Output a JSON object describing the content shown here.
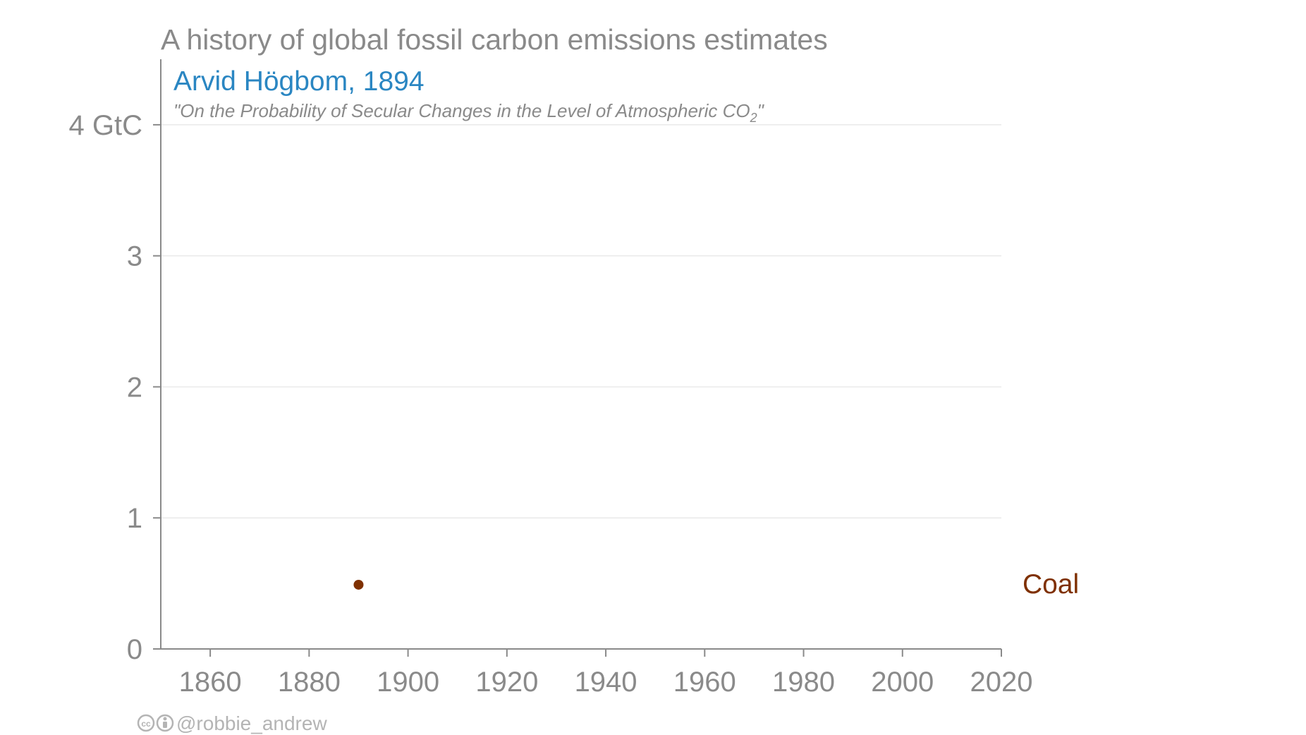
{
  "chart_data": {
    "type": "scatter",
    "title": "A history of global fossil carbon emissions estimates",
    "author_label": "Arvid Högbom, 1894",
    "paper_title_prefix": "\"On the Probability of Secular Changes in the Level of Atmospheric CO",
    "paper_title_subscript": "2",
    "paper_title_suffix": "\"",
    "y_unit": "GtC",
    "xlim": [
      1850,
      2020
    ],
    "ylim": [
      0,
      4.5
    ],
    "x_ticks": [
      1860,
      1880,
      1900,
      1920,
      1940,
      1960,
      1980,
      2000,
      2020
    ],
    "y_ticks": [
      0,
      1,
      2,
      3,
      4
    ],
    "y_tick_labels": [
      "0",
      "1",
      "2",
      "3",
      "4 GtC"
    ],
    "grid": true,
    "series": [
      {
        "name": "Coal",
        "color": "#7f3000",
        "points": [
          {
            "x": 1890,
            "y": 0.49
          }
        ]
      }
    ],
    "credit": "@robbie_andrew",
    "credit_icons": [
      "creative-commons-icon",
      "attribution-icon"
    ]
  }
}
